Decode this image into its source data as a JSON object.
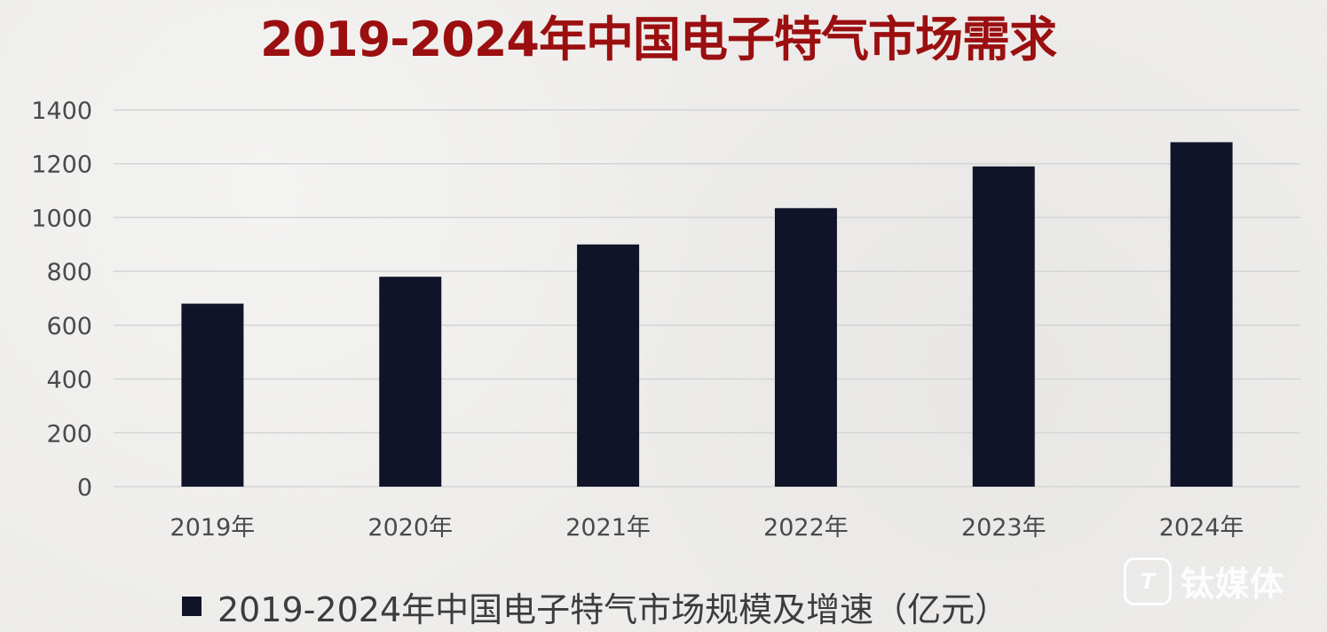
{
  "chart_data": {
    "type": "bar",
    "title": "2019-2024年中国电子特气市场需求",
    "categories": [
      "2019年",
      "2020年",
      "2021年",
      "2022年",
      "2023年",
      "2024年"
    ],
    "series": [
      {
        "name": "2019-2024年中国电子特气市场规模及增速（亿元）",
        "values": [
          680,
          780,
          900,
          1035,
          1190,
          1280
        ],
        "color": "#0f1429"
      }
    ],
    "ylim": [
      0,
      1400
    ],
    "yticks": [
      0,
      200,
      400,
      600,
      800,
      1000,
      1200,
      1400
    ],
    "grid": true,
    "legend_position": "bottom-left"
  },
  "watermark": {
    "text": "钛媒体",
    "logo_text": "T"
  },
  "colors": {
    "title": "#9b0f10",
    "bar": "#0f1429",
    "grid": "#d4d4d4",
    "axis_text": "#4a4a4a",
    "background": "#efeeec"
  }
}
